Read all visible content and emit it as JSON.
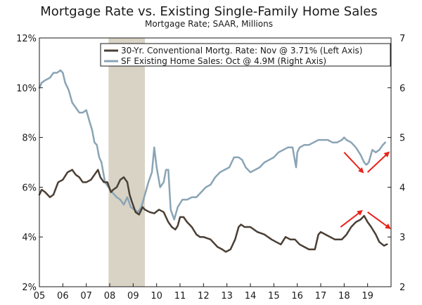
{
  "chart_data": {
    "type": "line",
    "title": "Mortgage Rate vs. Existing Single-Family Home Sales",
    "subtitle": "Mortgage Rate; SAAR, Millions",
    "x_range": [
      2005.0,
      2020.0
    ],
    "x_ticks": [
      {
        "label": "05",
        "x": 2005.0
      },
      {
        "label": "06",
        "x": 2006.0
      },
      {
        "label": "07",
        "x": 2007.0
      },
      {
        "label": "08",
        "x": 2008.0
      },
      {
        "label": "09",
        "x": 2009.0
      },
      {
        "label": "10",
        "x": 2010.0
      },
      {
        "label": "11",
        "x": 2011.0
      },
      {
        "label": "12",
        "x": 2012.0
      },
      {
        "label": "13",
        "x": 2013.0
      },
      {
        "label": "14",
        "x": 2014.0
      },
      {
        "label": "15",
        "x": 2015.0
      },
      {
        "label": "16",
        "x": 2016.0
      },
      {
        "label": "17",
        "x": 2017.0
      },
      {
        "label": "18",
        "x": 2018.0
      },
      {
        "label": "19",
        "x": 2019.0
      }
    ],
    "left_axis": {
      "min": 2,
      "max": 12,
      "ticks": [
        2,
        4,
        6,
        8,
        10,
        12
      ],
      "tick_labels": [
        "2%",
        "4%",
        "6%",
        "8%",
        "10%",
        "12%"
      ]
    },
    "right_axis": {
      "min": 2,
      "max": 7,
      "ticks": [
        2,
        3,
        4,
        5,
        6,
        7
      ],
      "tick_labels": [
        "2",
        "3",
        "4",
        "5",
        "6",
        "7"
      ]
    },
    "recession": {
      "start": 2007.95,
      "end": 2009.5,
      "color": "#d8d3c5"
    },
    "series": [
      {
        "name": "30-Yr. Conventional Mortg. Rate: Nov @ 3.71% (Left Axis)",
        "axis": "left",
        "color": "#4a3f35",
        "x": [
          2005.0,
          2005.1,
          2005.25,
          2005.45,
          2005.6,
          2005.8,
          2006.0,
          2006.2,
          2006.4,
          2006.55,
          2006.7,
          2006.85,
          2007.0,
          2007.2,
          2007.35,
          2007.5,
          2007.6,
          2007.75,
          2007.9,
          2008.05,
          2008.15,
          2008.3,
          2008.45,
          2008.6,
          2008.75,
          2008.85,
          2008.95,
          2009.1,
          2009.25,
          2009.4,
          2009.5,
          2009.7,
          2009.9,
          2010.1,
          2010.3,
          2010.5,
          2010.65,
          2010.8,
          2010.9,
          2011.0,
          2011.15,
          2011.3,
          2011.5,
          2011.7,
          2011.85,
          2012.0,
          2012.3,
          2012.6,
          2012.8,
          2012.95,
          2013.15,
          2013.35,
          2013.5,
          2013.6,
          2013.75,
          2014.0,
          2014.3,
          2014.6,
          2014.9,
          2015.1,
          2015.3,
          2015.5,
          2015.7,
          2015.9,
          2016.1,
          2016.3,
          2016.5,
          2016.75,
          2016.9,
          2017.0,
          2017.3,
          2017.6,
          2017.9,
          2018.1,
          2018.3,
          2018.5,
          2018.7,
          2018.85,
          2019.0,
          2019.15,
          2019.35,
          2019.5,
          2019.7,
          2019.83
        ],
        "values": [
          5.7,
          5.9,
          5.8,
          5.6,
          5.7,
          6.2,
          6.3,
          6.6,
          6.7,
          6.5,
          6.4,
          6.2,
          6.2,
          6.3,
          6.5,
          6.7,
          6.4,
          6.2,
          6.2,
          5.8,
          5.9,
          6.0,
          6.3,
          6.4,
          6.2,
          5.7,
          5.4,
          5.0,
          4.9,
          5.2,
          5.1,
          5.0,
          4.95,
          5.1,
          5.0,
          4.6,
          4.4,
          4.3,
          4.45,
          4.8,
          4.8,
          4.6,
          4.4,
          4.1,
          4.0,
          4.0,
          3.9,
          3.6,
          3.5,
          3.4,
          3.5,
          3.9,
          4.4,
          4.5,
          4.4,
          4.4,
          4.2,
          4.1,
          3.9,
          3.8,
          3.7,
          4.0,
          3.9,
          3.9,
          3.7,
          3.6,
          3.5,
          3.5,
          4.1,
          4.2,
          4.05,
          3.9,
          3.9,
          4.1,
          4.4,
          4.6,
          4.7,
          4.85,
          4.6,
          4.4,
          4.1,
          3.8,
          3.65,
          3.71
        ]
      },
      {
        "name": "SF Existing Home Sales: Oct @ 4.9M (Right Axis)",
        "axis": "right",
        "color": "#8aa4b5",
        "x": [
          2005.0,
          2005.1,
          2005.25,
          2005.45,
          2005.6,
          2005.75,
          2005.9,
          2006.0,
          2006.1,
          2006.25,
          2006.4,
          2006.55,
          2006.7,
          2006.85,
          2007.0,
          2007.15,
          2007.25,
          2007.35,
          2007.45,
          2007.55,
          2007.65,
          2007.8,
          2007.95,
          2008.1,
          2008.3,
          2008.45,
          2008.6,
          2008.75,
          2008.9,
          2009.05,
          2009.2,
          2009.35,
          2009.5,
          2009.65,
          2009.8,
          2009.9,
          2010.0,
          2010.15,
          2010.3,
          2010.4,
          2010.5,
          2010.6,
          2010.75,
          2010.9,
          2011.1,
          2011.3,
          2011.5,
          2011.7,
          2011.9,
          2012.1,
          2012.3,
          2012.5,
          2012.7,
          2012.9,
          2013.1,
          2013.3,
          2013.5,
          2013.65,
          2013.8,
          2014.0,
          2014.2,
          2014.4,
          2014.6,
          2014.8,
          2015.0,
          2015.2,
          2015.4,
          2015.6,
          2015.8,
          2015.95,
          2016.0,
          2016.1,
          2016.3,
          2016.5,
          2016.7,
          2016.9,
          2017.1,
          2017.3,
          2017.5,
          2017.7,
          2017.9,
          2018.0,
          2018.1,
          2018.3,
          2018.5,
          2018.7,
          2018.85,
          2018.95,
          2019.05,
          2019.2,
          2019.35,
          2019.5,
          2019.65,
          2019.75
        ],
        "values": [
          6.0,
          6.1,
          6.15,
          6.2,
          6.3,
          6.3,
          6.35,
          6.3,
          6.1,
          5.95,
          5.7,
          5.6,
          5.5,
          5.5,
          5.55,
          5.3,
          5.15,
          4.9,
          4.85,
          4.6,
          4.5,
          4.1,
          4.0,
          3.9,
          3.8,
          3.75,
          3.65,
          3.8,
          3.6,
          3.55,
          3.5,
          3.6,
          3.85,
          4.1,
          4.3,
          4.8,
          4.4,
          4.0,
          4.1,
          4.35,
          4.35,
          3.55,
          3.35,
          3.6,
          3.75,
          3.75,
          3.8,
          3.8,
          3.9,
          4.0,
          4.05,
          4.2,
          4.3,
          4.35,
          4.4,
          4.6,
          4.6,
          4.55,
          4.4,
          4.3,
          4.35,
          4.4,
          4.5,
          4.55,
          4.6,
          4.7,
          4.75,
          4.8,
          4.8,
          4.4,
          4.7,
          4.8,
          4.85,
          4.85,
          4.9,
          4.95,
          4.95,
          4.95,
          4.9,
          4.9,
          4.95,
          5.0,
          4.95,
          4.9,
          4.8,
          4.65,
          4.5,
          4.45,
          4.5,
          4.75,
          4.7,
          4.75,
          4.85,
          4.9
        ]
      }
    ],
    "annotations": {
      "color": "#e8231b",
      "arrows": [
        {
          "axis": "right",
          "from": [
            2018.0,
            4.7
          ],
          "to": [
            2018.8,
            4.3
          ]
        },
        {
          "axis": "right",
          "from": [
            2019.0,
            4.3
          ],
          "to": [
            2019.9,
            4.7
          ]
        },
        {
          "axis": "left",
          "from": [
            2017.85,
            4.4
          ],
          "to": [
            2018.75,
            5.05
          ]
        },
        {
          "axis": "left",
          "from": [
            2019.0,
            5.0
          ],
          "to": [
            2019.95,
            4.35
          ]
        }
      ]
    },
    "legend_position": "top-right"
  }
}
